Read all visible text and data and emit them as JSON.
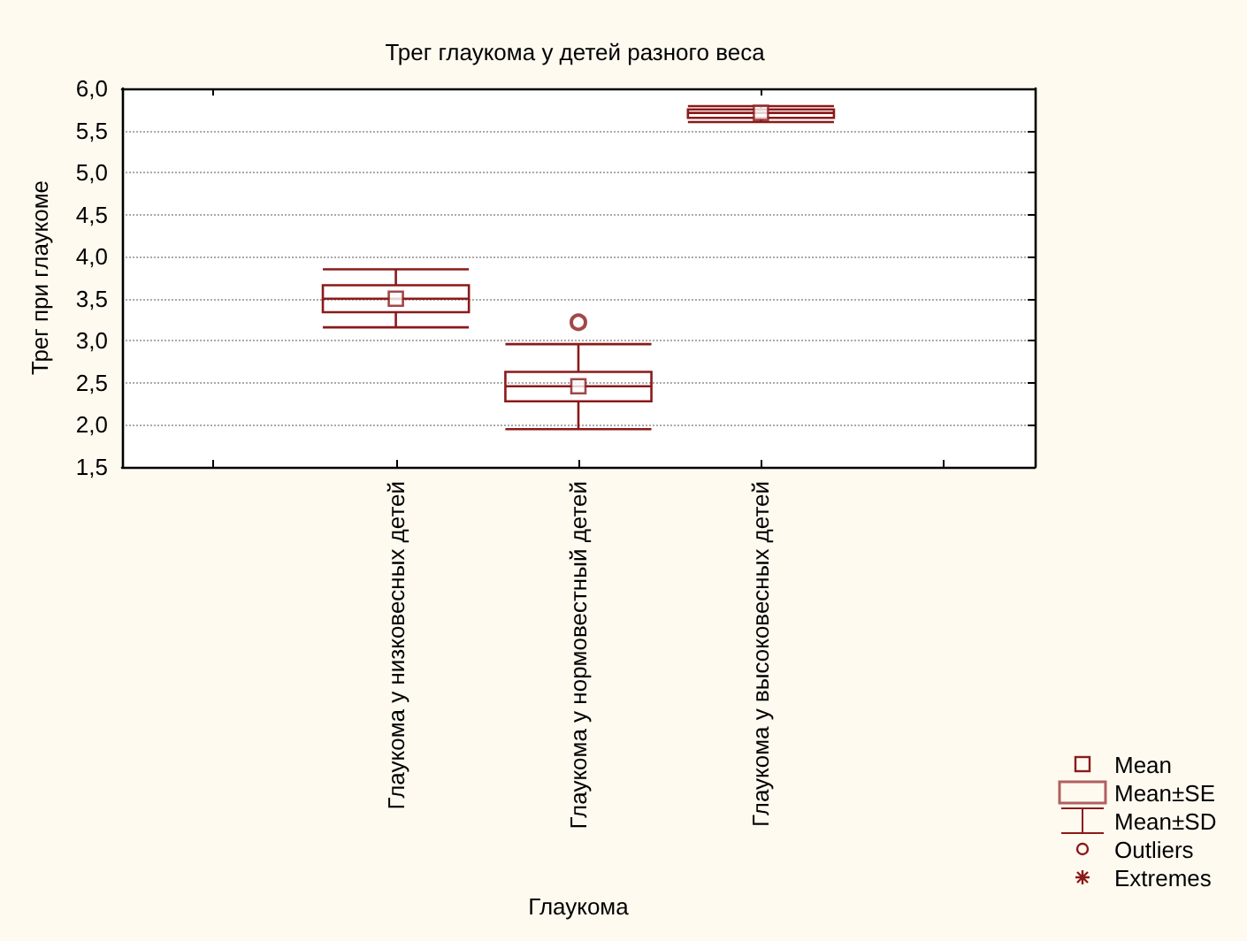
{
  "chart_data": {
    "type": "box",
    "title": "Трег глаукома у детей разного веса",
    "xlabel": "Глаукома",
    "ylabel": "Трег при глаукоме",
    "categories": [
      null,
      "Глаукома у низковесных детей",
      "Глаукома у нормовестный детей",
      "Глаукома у высоковесных детей",
      null
    ],
    "series": [
      {
        "color": "#8b1a1a",
        "boxes": [
          null,
          {
            "low": 3.16,
            "q1": 3.34,
            "median": 3.5,
            "q3": 3.66,
            "high": 3.85,
            "mean": 3.5
          },
          {
            "low": 1.95,
            "q1": 2.28,
            "median": 2.46,
            "q3": 2.63,
            "high": 2.96,
            "mean": 2.46,
            "outliers": [
              3.22
            ]
          },
          {
            "low": 5.6,
            "q1": 5.65,
            "median": 5.71,
            "q3": 5.75,
            "high": 5.79,
            "mean": 5.71
          },
          null
        ]
      }
    ],
    "ylim": [
      1.5,
      6
    ],
    "yticks": [
      {
        "value": 1.5,
        "label": "1,5"
      },
      {
        "value": 2,
        "label": "2,0"
      },
      {
        "value": 2.5,
        "label": "2,5"
      },
      {
        "value": 3,
        "label": "3,0"
      },
      {
        "value": 3.5,
        "label": "3,5"
      },
      {
        "value": 4,
        "label": "4,0"
      },
      {
        "value": 4.5,
        "label": "4,5"
      },
      {
        "value": 5,
        "label": "5,0"
      },
      {
        "value": 5.5,
        "label": "5,5"
      },
      {
        "value": 6,
        "label": "6,0"
      }
    ],
    "grid": "y",
    "marker": "square",
    "annotations": [
      "Mean",
      "Mean±SE",
      "Mean±SD",
      "Outliers",
      "Extremes"
    ]
  }
}
